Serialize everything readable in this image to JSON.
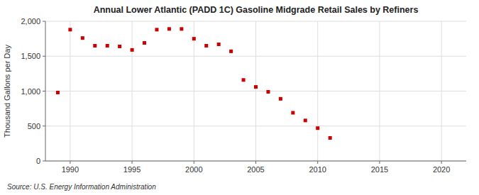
{
  "chart_data": {
    "type": "scatter",
    "title": "Annual Lower Atlantic (PADD 1C) Gasoline Midgrade Retail Sales by Refiners",
    "ylabel": "Thousand Gallons per Day",
    "annotation": "Source: U.S. Energy Information Administration",
    "x": [
      1989,
      1990,
      1991,
      1992,
      1993,
      1994,
      1995,
      1996,
      1997,
      1998,
      1999,
      2000,
      2001,
      2002,
      2003,
      2004,
      2005,
      2006,
      2007,
      2008,
      2009,
      2010,
      2011
    ],
    "values": [
      980,
      1880,
      1760,
      1650,
      1650,
      1640,
      1590,
      1690,
      1880,
      1890,
      1890,
      1750,
      1650,
      1670,
      1570,
      1160,
      1060,
      990,
      890,
      690,
      580,
      470,
      330
    ],
    "color": "#CC0000",
    "marker": "square",
    "xlim": [
      1988,
      2022
    ],
    "ylim": [
      0,
      2000
    ],
    "xticks": [
      1990,
      1995,
      2000,
      2005,
      2010,
      2015,
      2020
    ],
    "yticks": [
      0,
      500,
      {
        "value": 1000,
        "label": "1,000"
      },
      {
        "value": 1500,
        "label": "1,500"
      },
      {
        "value": 2000,
        "label": "2,000"
      }
    ],
    "grid": true
  }
}
